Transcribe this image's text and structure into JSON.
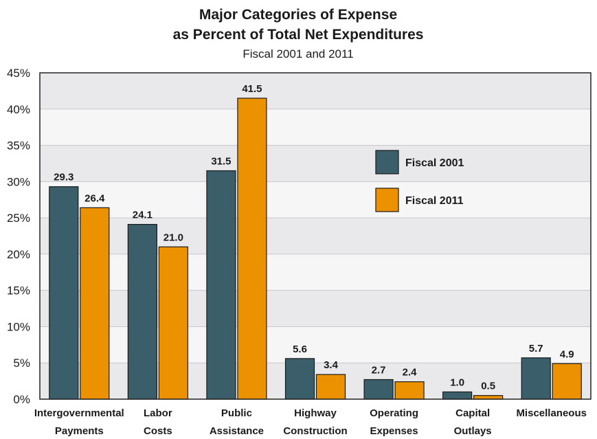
{
  "chart_data": {
    "type": "bar",
    "title": [
      "Major Categories of Expense",
      "as Percent of Total Net Expenditures"
    ],
    "subtitle": "Fiscal 2001 and 2011",
    "categories": [
      [
        "Intergovernmental",
        "Payments"
      ],
      [
        "Labor",
        "Costs"
      ],
      [
        "Public",
        "Assistance"
      ],
      [
        "Highway",
        "Construction"
      ],
      [
        "Operating",
        "Expenses"
      ],
      [
        "Capital",
        "Outlays"
      ],
      [
        "Miscellaneous"
      ]
    ],
    "series": [
      {
        "name": "Fiscal 2001",
        "color": "#3a5f6a",
        "values": [
          29.3,
          24.1,
          31.5,
          5.6,
          2.7,
          1.0,
          5.7
        ],
        "labels": [
          "29.3",
          "24.1",
          "31.5",
          "5.6",
          "2.7",
          "1.0",
          "5.7"
        ]
      },
      {
        "name": "Fiscal 2011",
        "color": "#ec9200",
        "values": [
          26.4,
          21.0,
          41.5,
          3.4,
          2.4,
          0.5,
          4.9
        ],
        "labels": [
          "26.4",
          "21.0",
          "41.5",
          "3.4",
          "2.4",
          "0.5",
          "4.9"
        ]
      }
    ],
    "ylim": [
      0,
      45
    ],
    "yticks": [
      0,
      5,
      10,
      15,
      20,
      25,
      30,
      35,
      40,
      45
    ],
    "ytick_labels": [
      "0%",
      "5%",
      "10%",
      "15%",
      "20%",
      "25%",
      "30%",
      "35%",
      "40%",
      "45%"
    ],
    "grid": true,
    "band_colors": [
      "#e9e9eb",
      "#f6f6f7"
    ],
    "legend_position": "upper-right-inside"
  }
}
